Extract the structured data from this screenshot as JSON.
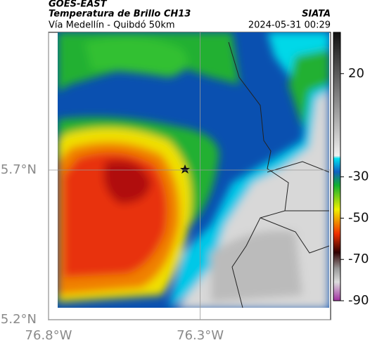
{
  "header": {
    "source": "GOES-EAST",
    "title": "Temperatura de Brillo CH13",
    "subtitle": "Vía Medellín - Quibdó 50km",
    "org": "SIATA",
    "timestamp": "2024-05-31 00:29"
  },
  "map": {
    "xlim": [
      -76.8,
      -75.87
    ],
    "ylim": [
      5.2,
      6.16
    ],
    "xticks": [
      {
        "value": -76.8,
        "label": "76.8°W"
      },
      {
        "value": -76.3,
        "label": "76.3°W"
      }
    ],
    "yticks": [
      {
        "value": 5.2,
        "label": "5.2°N"
      },
      {
        "value": 5.7,
        "label": "5.7°N"
      }
    ],
    "grid": true
  },
  "colorbar": {
    "lim": [
      40,
      -90
    ],
    "ticks": [
      20,
      -30,
      -50,
      -70,
      -90
    ]
  }
}
